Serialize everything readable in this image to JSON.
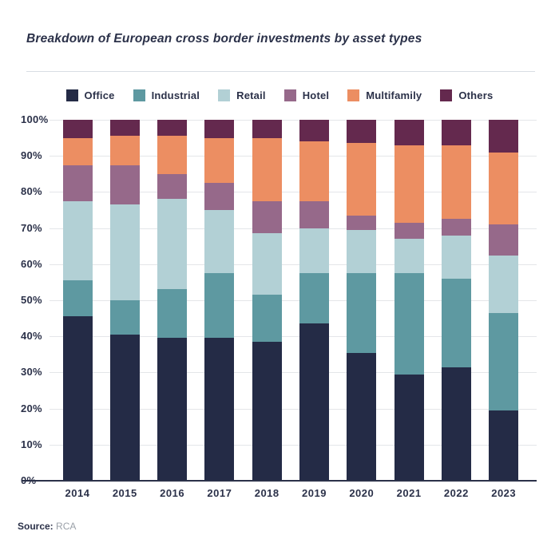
{
  "page": {
    "title": "Breakdown of European cross border investments by asset types",
    "source_label": "Source:",
    "source_value": "RCA"
  },
  "chart_data": {
    "type": "bar",
    "subtype": "stacked-100-percent",
    "title": "Breakdown of European cross border investments by asset types",
    "xlabel": "",
    "ylabel": "",
    "ylim": [
      0,
      100
    ],
    "y_ticks": [
      0,
      10,
      20,
      30,
      40,
      50,
      60,
      70,
      80,
      90,
      100
    ],
    "y_tick_suffix": "%",
    "grid": true,
    "legend_position": "top",
    "categories": [
      "2014",
      "2015",
      "2016",
      "2017",
      "2018",
      "2019",
      "2020",
      "2021",
      "2022",
      "2023"
    ],
    "series": [
      {
        "name": "Office",
        "color": "#242b46",
        "values": [
          45.5,
          40.5,
          39.5,
          39.5,
          38.5,
          43.5,
          35.5,
          29.5,
          31.5,
          19.5
        ]
      },
      {
        "name": "Industrial",
        "color": "#5e99a1",
        "values": [
          10.0,
          9.5,
          13.5,
          18.0,
          13.0,
          14.0,
          22.0,
          28.0,
          24.5,
          27.0
        ]
      },
      {
        "name": "Retail",
        "color": "#b2d0d5",
        "values": [
          22.0,
          26.5,
          25.0,
          17.5,
          17.0,
          12.5,
          12.0,
          9.5,
          12.0,
          16.0
        ]
      },
      {
        "name": "Hotel",
        "color": "#96698a",
        "values": [
          10.0,
          11.0,
          7.0,
          7.5,
          9.0,
          7.5,
          4.0,
          4.5,
          4.5,
          8.5
        ]
      },
      {
        "name": "Multifamily",
        "color": "#ec8e62",
        "values": [
          7.5,
          8.0,
          10.5,
          12.5,
          17.5,
          16.5,
          20.0,
          21.5,
          20.5,
          20.0
        ]
      },
      {
        "name": "Others",
        "color": "#64294e",
        "values": [
          5.0,
          4.5,
          4.5,
          5.0,
          5.0,
          6.0,
          6.5,
          7.0,
          7.0,
          9.0
        ]
      }
    ],
    "colors": {
      "text": "#2b3149",
      "gridline": "#e4e6e9",
      "axis_line": "#2b3149",
      "divider": "#d9dde3",
      "source_value_text": "#9aa0a8",
      "background": "#ffffff"
    }
  }
}
